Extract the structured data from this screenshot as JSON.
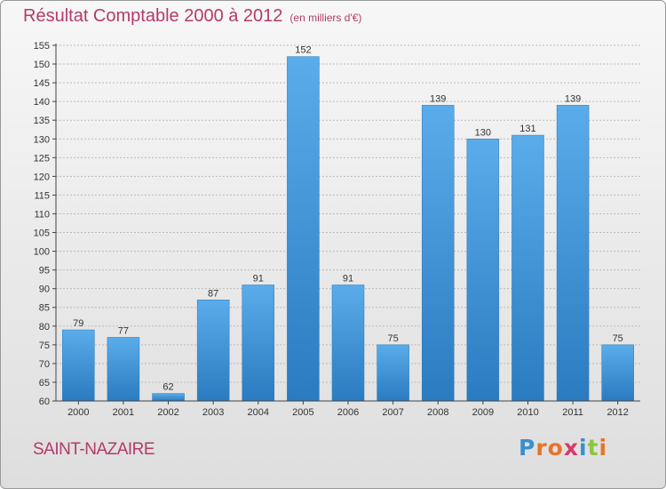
{
  "title": "Résultat Comptable 2000 à 2012",
  "subtitle": "(en milliers d'€)",
  "commune": "SAINT-NAZAIRE",
  "logo": {
    "text": "Proxiti",
    "letters": [
      "P",
      "r",
      "o",
      "x",
      "i",
      "t",
      "i"
    ],
    "colors": [
      "#3a8fd0",
      "#e8732a",
      "#e8732a",
      "#d93a6a",
      "#3a8fd0",
      "#8cc63f",
      "#e8732a"
    ]
  },
  "colors": {
    "bar_light": "#5aacea",
    "bar_dark": "#2a7bc0",
    "title": "#b43a6a",
    "grid": "#bbbbbb"
  },
  "chart_data": {
    "type": "bar",
    "categories": [
      "2000",
      "2001",
      "2002",
      "2003",
      "2004",
      "2005",
      "2006",
      "2007",
      "2008",
      "2009",
      "2010",
      "2011",
      "2012"
    ],
    "values": [
      79,
      77,
      62,
      87,
      91,
      152,
      91,
      75,
      139,
      130,
      131,
      139,
      75
    ],
    "title": "Résultat Comptable 2000 à 2012",
    "xlabel": "",
    "ylabel": "",
    "ylim": [
      60,
      155
    ],
    "yticks": [
      60,
      65,
      70,
      75,
      80,
      85,
      90,
      95,
      100,
      105,
      110,
      115,
      120,
      125,
      130,
      135,
      140,
      145,
      150,
      155
    ],
    "grid": true,
    "legend": "none"
  }
}
